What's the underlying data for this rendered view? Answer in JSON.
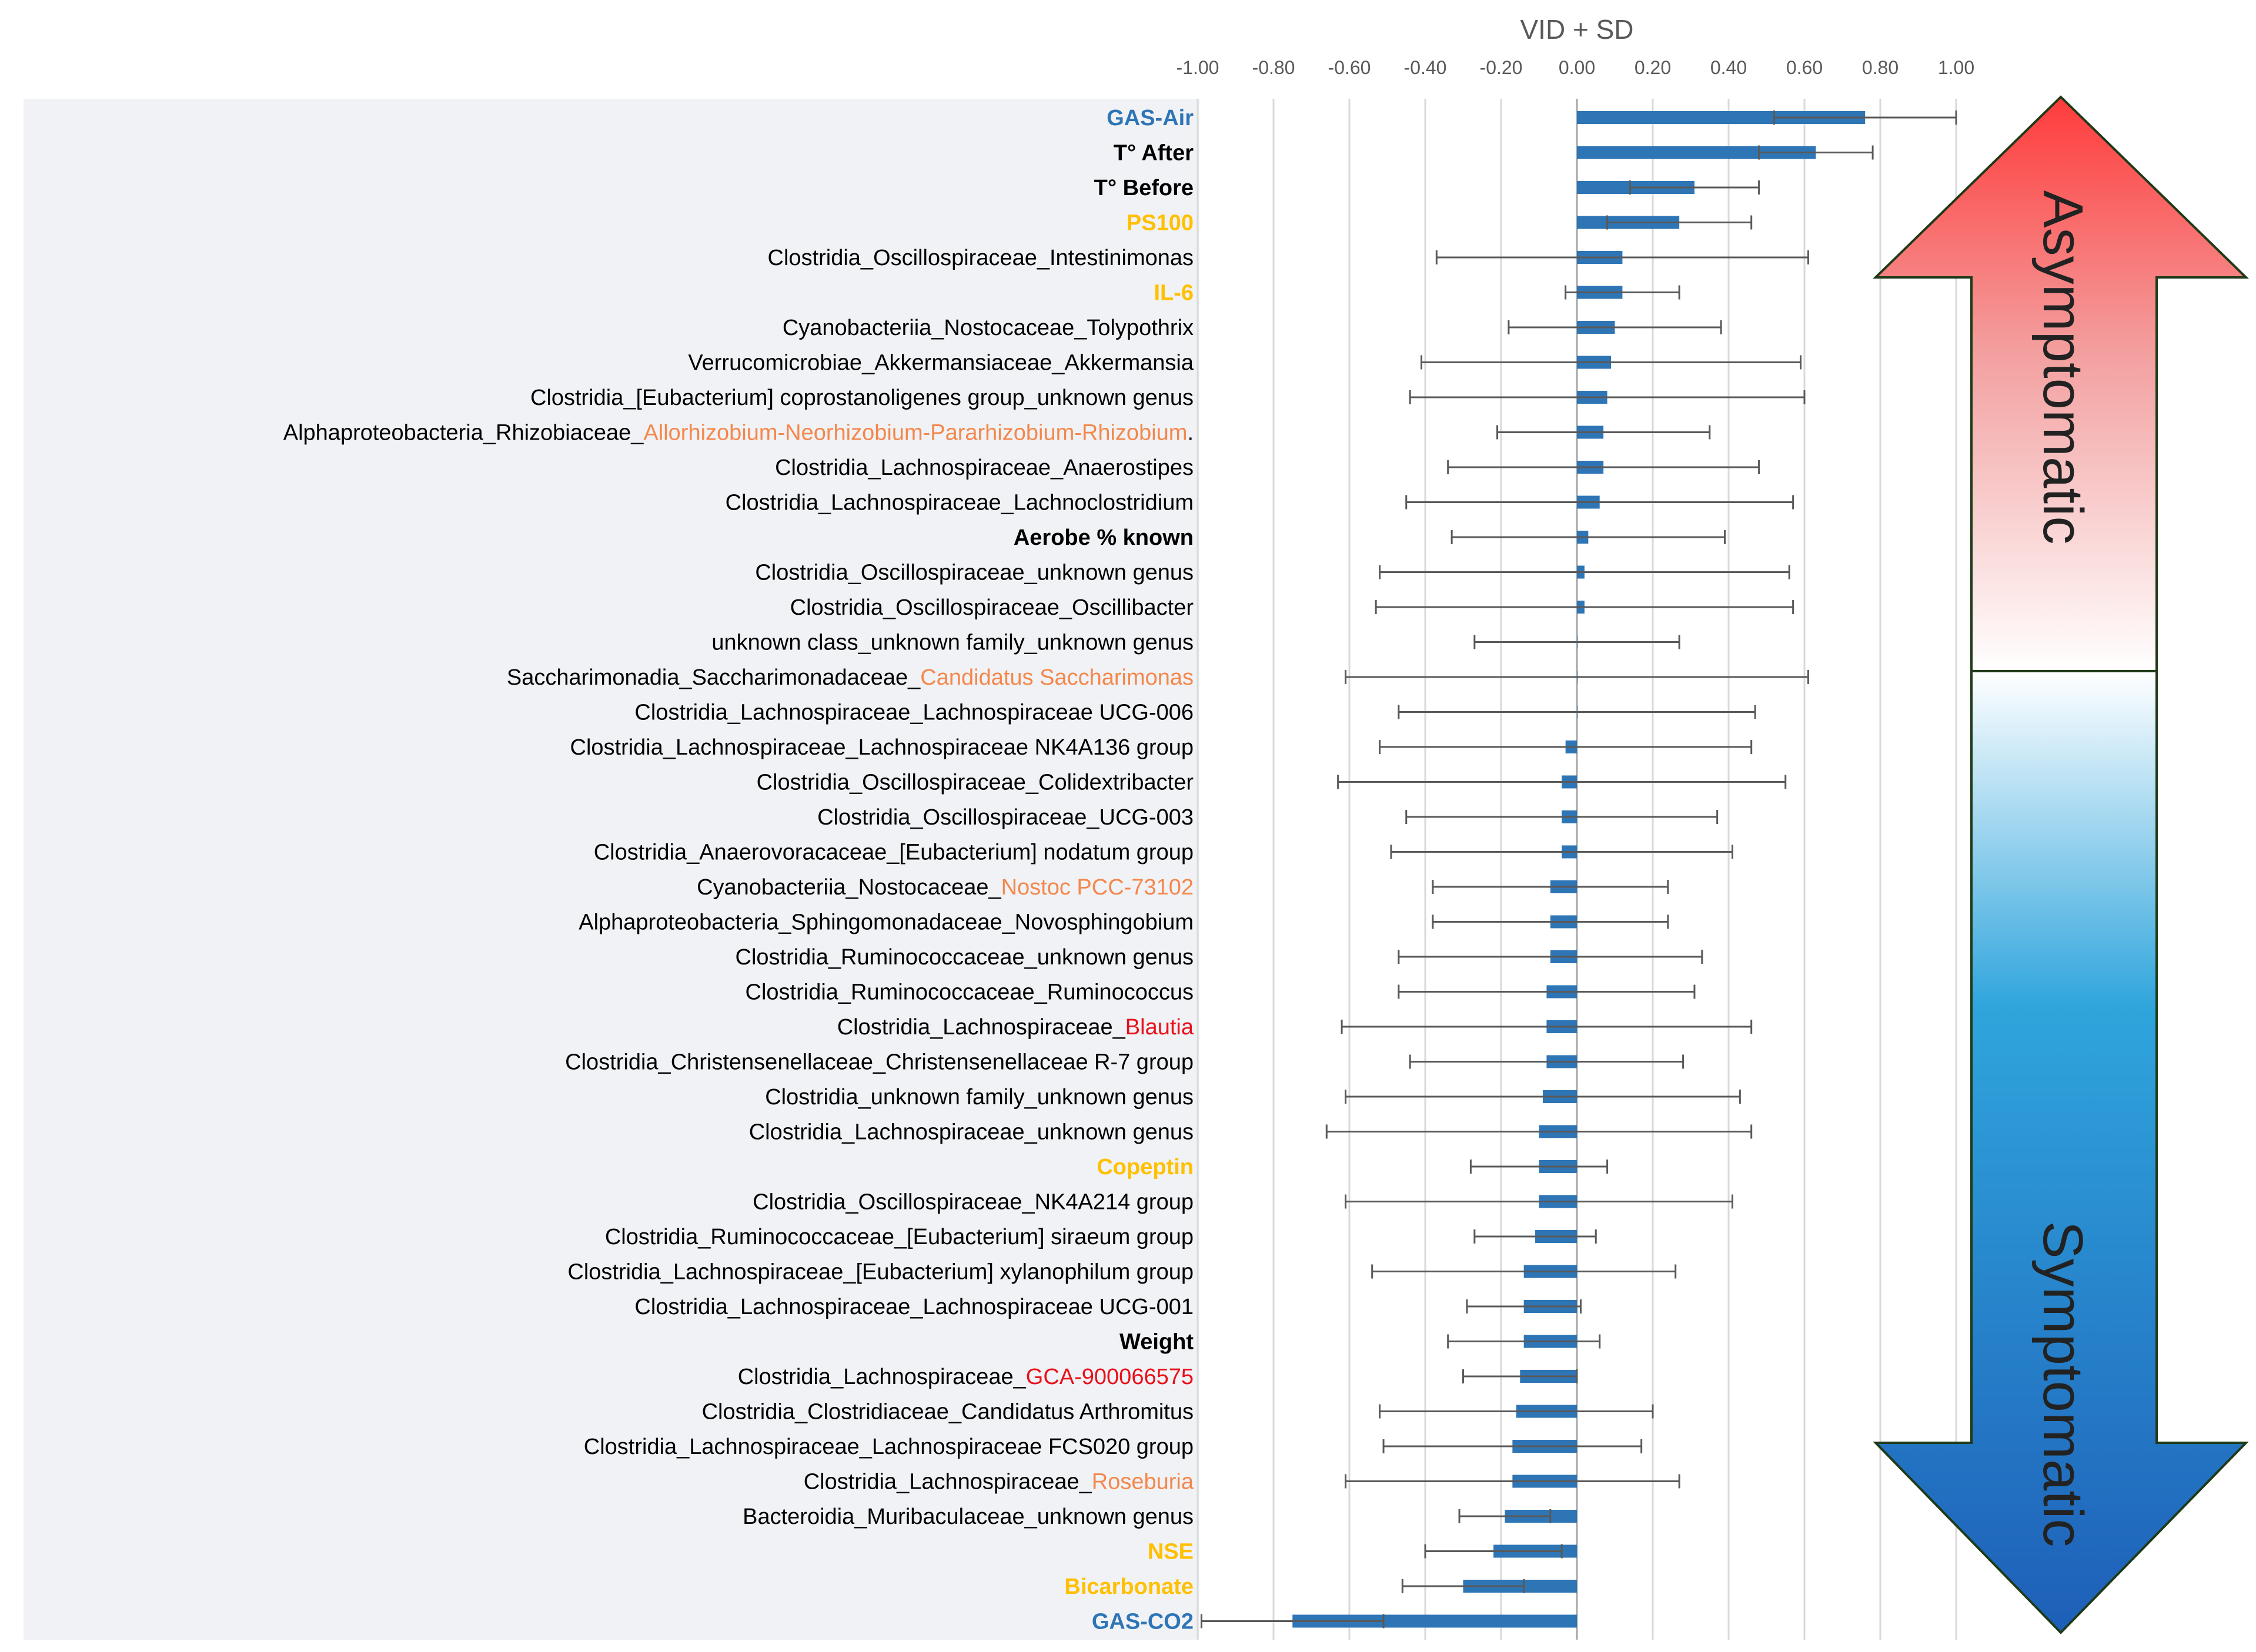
{
  "chart_data": {
    "type": "bar",
    "orientation": "horizontal",
    "title": "VID + SD",
    "xlim": [
      -1.0,
      1.0
    ],
    "xticks": [
      "-1.00",
      "-0.80",
      "-0.60",
      "-0.40",
      "-0.20",
      "0.00",
      "0.20",
      "0.40",
      "0.60",
      "0.80",
      "1.00"
    ],
    "grid": true,
    "categories": [
      {
        "segments": [
          {
            "text": "GAS-Air",
            "color": "#2e75b6"
          }
        ],
        "bold": true,
        "value": 0.76,
        "sd": 0.24
      },
      {
        "segments": [
          {
            "text": "T° After",
            "color": "#000000"
          }
        ],
        "bold": true,
        "value": 0.63,
        "sd": 0.15
      },
      {
        "segments": [
          {
            "text": "T° Before",
            "color": "#000000"
          }
        ],
        "bold": true,
        "value": 0.31,
        "sd": 0.17
      },
      {
        "segments": [
          {
            "text": "PS100",
            "color": "#ffc000"
          }
        ],
        "bold": true,
        "value": 0.27,
        "sd": 0.19
      },
      {
        "segments": [
          {
            "text": "Clostridia_Oscillospiraceae_Intestinimonas",
            "color": "#000000"
          }
        ],
        "bold": false,
        "value": 0.12,
        "sd": 0.49
      },
      {
        "segments": [
          {
            "text": "IL-6",
            "color": "#ffc000"
          }
        ],
        "bold": true,
        "value": 0.12,
        "sd": 0.15
      },
      {
        "segments": [
          {
            "text": "Cyanobacteriia_Nostocaceae_Tolypothrix",
            "color": "#000000"
          }
        ],
        "bold": false,
        "value": 0.1,
        "sd": 0.28
      },
      {
        "segments": [
          {
            "text": "Verrucomicrobiae_Akkermansiaceae_Akkermansia",
            "color": "#000000"
          }
        ],
        "bold": false,
        "value": 0.09,
        "sd": 0.5
      },
      {
        "segments": [
          {
            "text": "Clostridia_[Eubacterium] coprostanoligenes group_unknown genus",
            "color": "#000000"
          }
        ],
        "bold": false,
        "value": 0.08,
        "sd": 0.52
      },
      {
        "segments": [
          {
            "text": "Alphaproteobacteria_Rhizobiaceae_",
            "color": "#000000"
          },
          {
            "text": "Allorhizobium-Neorhizobium-Pararhizobium-Rhizobium",
            "color": "#f4874b"
          },
          {
            "text": ".",
            "color": "#000000"
          }
        ],
        "bold": false,
        "value": 0.07,
        "sd": 0.28
      },
      {
        "segments": [
          {
            "text": "Clostridia_Lachnospiraceae_Anaerostipes",
            "color": "#000000"
          }
        ],
        "bold": false,
        "value": 0.07,
        "sd": 0.41
      },
      {
        "segments": [
          {
            "text": "Clostridia_Lachnospiraceae_Lachnoclostridium",
            "color": "#000000"
          }
        ],
        "bold": false,
        "value": 0.06,
        "sd": 0.51
      },
      {
        "segments": [
          {
            "text": "Aerobe % known",
            "color": "#000000"
          }
        ],
        "bold": true,
        "value": 0.03,
        "sd": 0.36
      },
      {
        "segments": [
          {
            "text": "Clostridia_Oscillospiraceae_unknown genus",
            "color": "#000000"
          }
        ],
        "bold": false,
        "value": 0.02,
        "sd": 0.54
      },
      {
        "segments": [
          {
            "text": "Clostridia_Oscillospiraceae_Oscillibacter",
            "color": "#000000"
          }
        ],
        "bold": false,
        "value": 0.02,
        "sd": 0.55
      },
      {
        "segments": [
          {
            "text": "unknown class_unknown family_unknown genus",
            "color": "#000000"
          }
        ],
        "bold": false,
        "value": 0.0,
        "sd": 0.27
      },
      {
        "segments": [
          {
            "text": "Saccharimonadia_Saccharimonadaceae_",
            "color": "#000000"
          },
          {
            "text": "Candidatus Saccharimonas",
            "color": "#f4874b"
          }
        ],
        "bold": false,
        "value": 0.0,
        "sd": 0.61
      },
      {
        "segments": [
          {
            "text": "Clostridia_Lachnospiraceae_Lachnospiraceae UCG-006",
            "color": "#000000"
          }
        ],
        "bold": false,
        "value": 0.0,
        "sd": 0.47
      },
      {
        "segments": [
          {
            "text": "Clostridia_Lachnospiraceae_Lachnospiraceae NK4A136 group",
            "color": "#000000"
          }
        ],
        "bold": false,
        "value": -0.03,
        "sd": 0.49
      },
      {
        "segments": [
          {
            "text": "Clostridia_Oscillospiraceae_Colidextribacter",
            "color": "#000000"
          }
        ],
        "bold": false,
        "value": -0.04,
        "sd": 0.59
      },
      {
        "segments": [
          {
            "text": "Clostridia_Oscillospiraceae_UCG-003",
            "color": "#000000"
          }
        ],
        "bold": false,
        "value": -0.04,
        "sd": 0.41
      },
      {
        "segments": [
          {
            "text": "Clostridia_Anaerovoracaceae_[Eubacterium] nodatum group",
            "color": "#000000"
          }
        ],
        "bold": false,
        "value": -0.04,
        "sd": 0.45
      },
      {
        "segments": [
          {
            "text": "Cyanobacteriia_Nostocaceae_",
            "color": "#000000"
          },
          {
            "text": "Nostoc PCC-73102",
            "color": "#f4874b"
          }
        ],
        "bold": false,
        "value": -0.07,
        "sd": 0.31
      },
      {
        "segments": [
          {
            "text": "Alphaproteobacteria_Sphingomonadaceae_Novosphingobium",
            "color": "#000000"
          }
        ],
        "bold": false,
        "value": -0.07,
        "sd": 0.31
      },
      {
        "segments": [
          {
            "text": "Clostridia_Ruminococcaceae_unknown genus",
            "color": "#000000"
          }
        ],
        "bold": false,
        "value": -0.07,
        "sd": 0.4
      },
      {
        "segments": [
          {
            "text": "Clostridia_Ruminococcaceae_Ruminococcus",
            "color": "#000000"
          }
        ],
        "bold": false,
        "value": -0.08,
        "sd": 0.39
      },
      {
        "segments": [
          {
            "text": "Clostridia_Lachnospiraceae_",
            "color": "#000000"
          },
          {
            "text": "Blautia",
            "color": "#e8101a"
          }
        ],
        "bold": false,
        "value": -0.08,
        "sd": 0.54
      },
      {
        "segments": [
          {
            "text": "Clostridia_Christensenellaceae_Christensenellaceae R-7 group",
            "color": "#000000"
          }
        ],
        "bold": false,
        "value": -0.08,
        "sd": 0.36
      },
      {
        "segments": [
          {
            "text": "Clostridia_unknown family_unknown genus",
            "color": "#000000"
          }
        ],
        "bold": false,
        "value": -0.09,
        "sd": 0.52
      },
      {
        "segments": [
          {
            "text": "Clostridia_Lachnospiraceae_unknown genus",
            "color": "#000000"
          }
        ],
        "bold": false,
        "value": -0.1,
        "sd": 0.56
      },
      {
        "segments": [
          {
            "text": "Copeptin",
            "color": "#ffc000"
          }
        ],
        "bold": true,
        "value": -0.1,
        "sd": 0.18
      },
      {
        "segments": [
          {
            "text": "Clostridia_Oscillospiraceae_NK4A214 group",
            "color": "#000000"
          }
        ],
        "bold": false,
        "value": -0.1,
        "sd": 0.51
      },
      {
        "segments": [
          {
            "text": "Clostridia_Ruminococcaceae_[Eubacterium] siraeum group",
            "color": "#000000"
          }
        ],
        "bold": false,
        "value": -0.11,
        "sd": 0.16
      },
      {
        "segments": [
          {
            "text": "Clostridia_Lachnospiraceae_[Eubacterium] xylanophilum group",
            "color": "#000000"
          }
        ],
        "bold": false,
        "value": -0.14,
        "sd": 0.4
      },
      {
        "segments": [
          {
            "text": "Clostridia_Lachnospiraceae_Lachnospiraceae UCG-001",
            "color": "#000000"
          }
        ],
        "bold": false,
        "value": -0.14,
        "sd": 0.15
      },
      {
        "segments": [
          {
            "text": "Weight",
            "color": "#000000"
          }
        ],
        "bold": true,
        "value": -0.14,
        "sd": 0.2
      },
      {
        "segments": [
          {
            "text": "Clostridia_Lachnospiraceae_",
            "color": "#000000"
          },
          {
            "text": "GCA-900066575",
            "color": "#e8101a"
          }
        ],
        "bold": false,
        "value": -0.15,
        "sd": 0.15
      },
      {
        "segments": [
          {
            "text": "Clostridia_Clostridiaceae_Candidatus Arthromitus",
            "color": "#000000"
          }
        ],
        "bold": false,
        "value": -0.16,
        "sd": 0.36
      },
      {
        "segments": [
          {
            "text": "Clostridia_Lachnospiraceae_Lachnospiraceae FCS020 group",
            "color": "#000000"
          }
        ],
        "bold": false,
        "value": -0.17,
        "sd": 0.34
      },
      {
        "segments": [
          {
            "text": "Clostridia_Lachnospiraceae_",
            "color": "#000000"
          },
          {
            "text": "Roseburia",
            "color": "#f4874b"
          }
        ],
        "bold": false,
        "value": -0.17,
        "sd": 0.44
      },
      {
        "segments": [
          {
            "text": "Bacteroidia_Muribaculaceae_unknown genus",
            "color": "#000000"
          }
        ],
        "bold": false,
        "value": -0.19,
        "sd": 0.12
      },
      {
        "segments": [
          {
            "text": "NSE",
            "color": "#ffc000"
          }
        ],
        "bold": true,
        "value": -0.22,
        "sd": 0.18
      },
      {
        "segments": [
          {
            "text": "Bicarbonate",
            "color": "#ffc000"
          }
        ],
        "bold": true,
        "value": -0.3,
        "sd": 0.16
      },
      {
        "segments": [
          {
            "text": "GAS-CO2",
            "color": "#2e75b6"
          }
        ],
        "bold": true,
        "value": -0.75,
        "sd": 0.24
      }
    ],
    "annotations": {
      "up": "Asymptomatic",
      "down": "Symptomatic"
    },
    "colors": {
      "bar": "#2e75b6",
      "error": "#595959",
      "grid": "#d9d9d9",
      "panel": "#f0f2f5"
    }
  }
}
